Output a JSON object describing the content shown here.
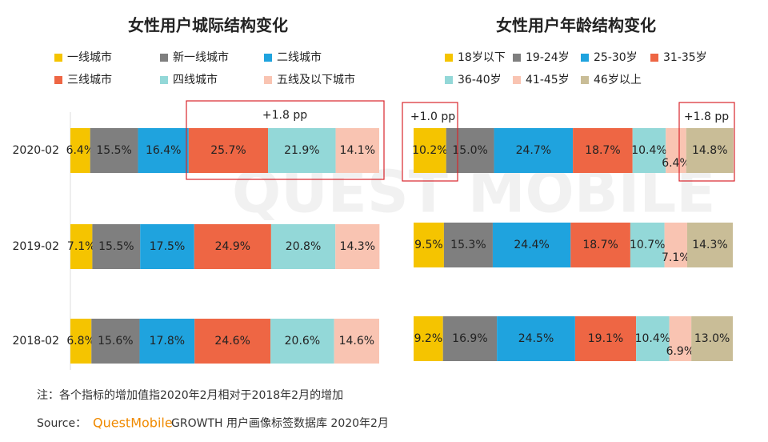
{
  "chart_data": [
    {
      "type": "stacked-barh",
      "title": "女性用户城际结构变化",
      "categories": [
        "2020-02",
        "2019-02",
        "2018-02"
      ],
      "series": [
        {
          "name": "一线城市",
          "color": "#f5c400",
          "values": [
            6.4,
            7.1,
            6.8
          ],
          "value_labels": [
            "6.4%",
            "7.1%",
            "6.8%"
          ]
        },
        {
          "name": "新一线城市",
          "color": "#7f7f7f",
          "values": [
            15.5,
            15.5,
            15.6
          ],
          "value_labels": [
            "15.5%",
            "15.5%",
            "15.6%"
          ]
        },
        {
          "name": "二线城市",
          "color": "#1fa3de",
          "values": [
            16.4,
            17.5,
            17.8
          ],
          "value_labels": [
            "16.4%",
            "17.5%",
            "17.8%"
          ]
        },
        {
          "name": "三线城市",
          "color": "#ee6644",
          "values": [
            25.7,
            24.9,
            24.6
          ],
          "value_labels": [
            "25.7%",
            "24.9%",
            "24.6%"
          ]
        },
        {
          "name": "四线城市",
          "color": "#93d8d8",
          "values": [
            21.9,
            20.8,
            20.6
          ],
          "value_labels": [
            "21.9%",
            "20.8%",
            "20.6%"
          ]
        },
        {
          "name": "五线及以下城市",
          "color": "#f9c4b2",
          "values": [
            14.1,
            14.3,
            14.6
          ],
          "value_labels": [
            "14.1%",
            "14.3%",
            "14.6%"
          ]
        }
      ],
      "annotations": [
        "+1.8 pp"
      ]
    },
    {
      "type": "stacked-barh",
      "title": "女性用户年龄结构变化",
      "series": [
        {
          "name": "18岁以下",
          "color": "#f5c400",
          "values": [
            10.2,
            9.5,
            9.2
          ],
          "value_labels": [
            "10.2%",
            "9.5%",
            "9.2%"
          ]
        },
        {
          "name": "19-24岁",
          "color": "#7f7f7f",
          "values": [
            15.0,
            15.3,
            16.9
          ],
          "value_labels": [
            "15.0%",
            "15.3%",
            "16.9%"
          ]
        },
        {
          "name": "25-30岁",
          "color": "#1fa3de",
          "values": [
            24.7,
            24.4,
            24.5
          ],
          "value_labels": [
            "24.7%",
            "24.4%",
            "24.5%"
          ]
        },
        {
          "name": "31-35岁",
          "color": "#ee6644",
          "values": [
            18.7,
            18.7,
            19.1
          ],
          "value_labels": [
            "18.7%",
            "18.7%",
            "19.1%"
          ]
        },
        {
          "name": "36-40岁",
          "color": "#93d8d8",
          "values": [
            10.4,
            10.7,
            10.4
          ],
          "value_labels": [
            "10.4%",
            "10.7%",
            "10.4%"
          ]
        },
        {
          "name": "41-45岁",
          "color": "#f9c4b2",
          "values": [
            6.4,
            7.1,
            6.9
          ],
          "value_labels": [
            "6.4%",
            "7.1%",
            "6.9%"
          ]
        },
        {
          "name": "46岁以上",
          "color": "#c9bd97",
          "values": [
            14.8,
            14.3,
            13.0
          ],
          "value_labels": [
            "14.8%",
            "14.3%",
            "13.0%"
          ]
        }
      ],
      "annotations": [
        "+1.0 pp",
        "+1.8 pp"
      ]
    }
  ],
  "watermark": "QUEST MOBILE",
  "footer": {
    "note": "注：各个指标的增加值指2020年2月相对于2018年2月的增加",
    "source_label": "Source：",
    "brand": "QuestMobile",
    "source": "GROWTH 用户画像标签数据库 2020年2月"
  }
}
